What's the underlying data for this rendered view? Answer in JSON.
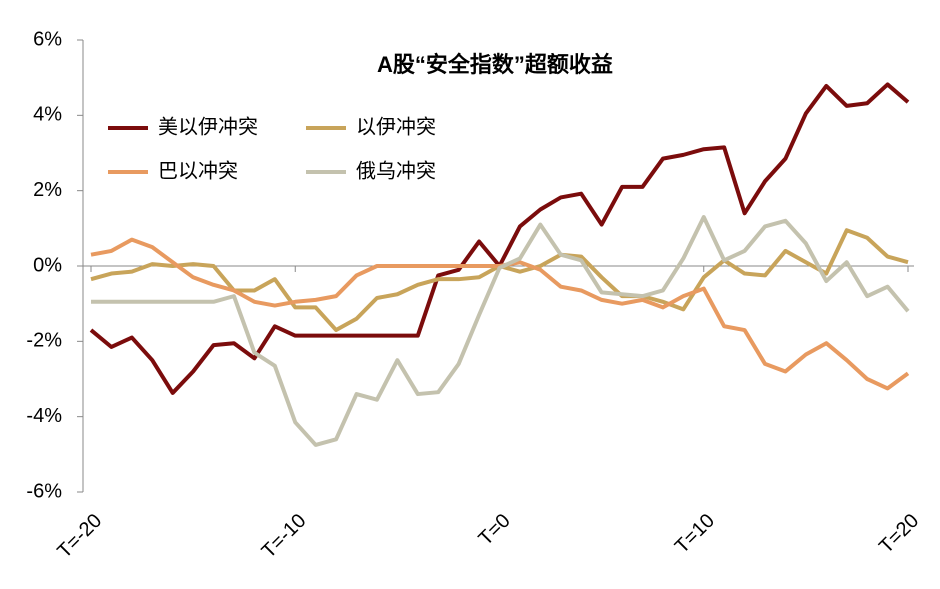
{
  "chart_data": {
    "type": "line",
    "title": "A股“安全指数”超额收益",
    "categories": [
      "T=-20",
      null,
      null,
      null,
      null,
      null,
      null,
      null,
      null,
      null,
      "T=-10",
      null,
      null,
      null,
      null,
      null,
      null,
      null,
      null,
      null,
      "T=0",
      null,
      null,
      null,
      null,
      null,
      null,
      null,
      null,
      null,
      "T=10",
      null,
      null,
      null,
      null,
      null,
      null,
      null,
      null,
      null,
      "T=20"
    ],
    "ylim": [
      -6,
      6
    ],
    "yticks": [
      {
        "value": -6,
        "label": "-6%"
      },
      {
        "value": -4,
        "label": "-4%"
      },
      {
        "value": -2,
        "label": "-2%"
      },
      {
        "value": 0,
        "label": "0%"
      },
      {
        "value": 2,
        "label": "2%"
      },
      {
        "value": 4,
        "label": "4%"
      },
      {
        "value": 6,
        "label": "6%"
      }
    ],
    "legend": "top-left",
    "series": [
      {
        "name": "美以伊冲突",
        "color": "#7b0c0c",
        "values": [
          -1.7,
          -2.15,
          -1.9,
          -2.5,
          -3.37,
          -2.8,
          -2.1,
          -2.05,
          -2.45,
          -1.6,
          -1.85,
          -1.85,
          -1.85,
          -1.85,
          -1.85,
          -1.85,
          -1.85,
          -0.25,
          -0.1,
          0.65,
          0,
          1.05,
          1.5,
          1.82,
          1.92,
          1.1,
          2.1,
          2.1,
          2.85,
          2.95,
          3.1,
          3.15,
          1.4,
          2.25,
          2.85,
          4.05,
          4.78,
          4.25,
          4.32,
          4.82,
          4.35
        ]
      },
      {
        "name": "以伊冲突",
        "color": "#c8a45a",
        "values": [
          -0.35,
          -0.2,
          -0.15,
          0.05,
          0,
          0.05,
          0,
          -0.65,
          -0.65,
          -0.35,
          -1.1,
          -1.1,
          -1.7,
          -1.4,
          -0.85,
          -0.75,
          -0.5,
          -0.35,
          -0.35,
          -0.3,
          0,
          -0.15,
          0,
          0.3,
          0.25,
          -0.3,
          -0.8,
          -0.8,
          -0.95,
          -1.15,
          -0.3,
          0.15,
          -0.2,
          -0.25,
          0.4,
          0.1,
          -0.2,
          0.95,
          0.75,
          0.25,
          0.1
        ]
      },
      {
        "name": "巴以冲突",
        "color": "#e89a60",
        "values": [
          0.3,
          0.4,
          0.7,
          0.5,
          0.1,
          -0.3,
          -0.5,
          -0.65,
          -0.95,
          -1.05,
          -0.95,
          -0.9,
          -0.8,
          -0.25,
          0,
          0,
          0,
          0,
          0,
          0,
          0,
          0.1,
          -0.1,
          -0.55,
          -0.65,
          -0.9,
          -1.0,
          -0.9,
          -1.1,
          -0.8,
          -0.6,
          -1.6,
          -1.7,
          -2.6,
          -2.8,
          -2.35,
          -2.05,
          -2.5,
          -3.0,
          -3.25,
          -2.85
        ]
      },
      {
        "name": "俄乌冲突",
        "color": "#c4c2ae",
        "values": [
          -0.95,
          -0.95,
          -0.95,
          -0.95,
          -0.95,
          -0.95,
          -0.95,
          -0.8,
          -2.3,
          -2.65,
          -4.15,
          -4.75,
          -4.6,
          -3.4,
          -3.55,
          -2.5,
          -3.4,
          -3.35,
          -2.6,
          -1.3,
          -0.05,
          0.2,
          1.1,
          0.3,
          0.15,
          -0.7,
          -0.75,
          -0.8,
          -0.65,
          0.2,
          1.3,
          0.15,
          0.4,
          1.05,
          1.2,
          0.6,
          -0.4,
          0.1,
          -0.8,
          -0.55,
          -1.2
        ]
      }
    ]
  }
}
